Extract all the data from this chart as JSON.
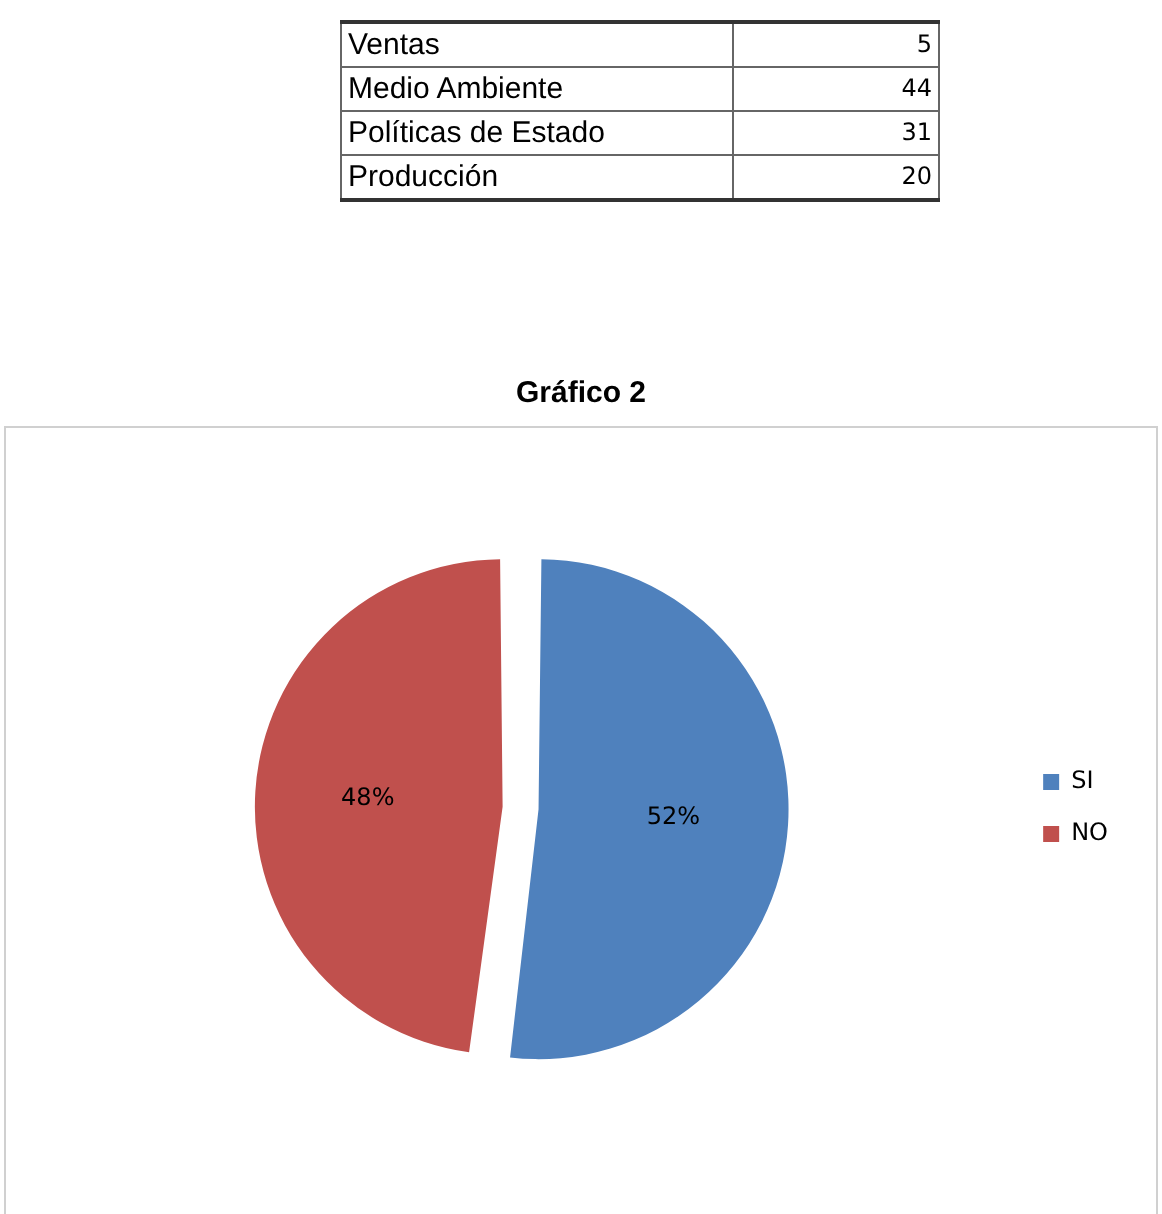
{
  "chart_data": [
    {
      "type": "other",
      "categories": [
        "Ventas",
        "Medio Ambiente",
        "Políticas de Estado",
        "Producción"
      ],
      "values": [
        5,
        44,
        31,
        20
      ],
      "data_labels": true
    },
    {
      "type": "pie",
      "title": "Gráfico 2",
      "categories": [
        "SI",
        "NO"
      ],
      "values": [
        52,
        48
      ],
      "colors": [
        "#4f81bd",
        "#c0504d"
      ],
      "value_labels": [
        "52%",
        "48%"
      ],
      "legend": "right"
    }
  ]
}
